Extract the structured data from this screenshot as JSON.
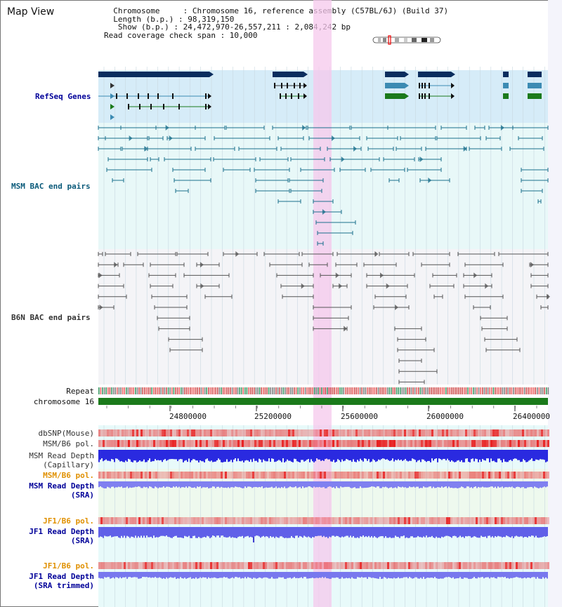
{
  "page": {
    "title": "Map View"
  },
  "info": {
    "lines": [
      "  Chromosome     : Chromosome 16, reference assembly (C57BL/6J) (Build 37)",
      "  Length (b.p.) : 98,319,150",
      "   Show (b.p.) : 24,472,970-26,557,211 : 2,084,242 bp",
      "Read coverage check span : 10,000"
    ]
  },
  "tracks": {
    "refseq": "RefSeq Genes",
    "msm_bac": "MSM BAC end pairs",
    "b6n_bac": "B6N BAC end pairs",
    "repeat": "Repeat",
    "chromosome": "chromosome 16",
    "dbsnp": "dbSNP(Mouse)",
    "msm_b6_pol": "MSM/B6 pol.",
    "msm_depth_cap_1": "MSM Read Depth",
    "msm_depth_cap_2": "(Capillary)",
    "msm_b6_pol_2": "MSM/B6 pol.",
    "msm_depth_sra_1": "MSM Read Depth",
    "msm_depth_sra_2": "(SRA)",
    "jf1_pol_1": "JF1/B6 pol.",
    "jf1_depth_sra_1": "JF1 Read Depth",
    "jf1_depth_sra_2": "(SRA)",
    "jf1_pol_2": "JF1/B6 pol.",
    "jf1_depth_trim_1": "JF1 Read Depth",
    "jf1_depth_trim_2": "(SRA trimmed)"
  },
  "axis": {
    "ticks": [
      "24800000",
      "25200000",
      "25600000",
      "26000000",
      "26400000"
    ]
  },
  "colors": {
    "refseq_bg": "#d6ecf8",
    "msm_bg": "#e8f8f8",
    "b6n_bg": "#f4f4f7",
    "highlight": "#f5c8ec",
    "chrom_bar": "#1b7a1b",
    "navy": "#0a2d5e",
    "teal_gene": "#3c8bb3",
    "green_gene": "#1b7a1b",
    "msm_pair": "#1a6f8c",
    "b6n_pair": "#555555",
    "snp_red": "#e62020",
    "depth_blue": "#2a2ae0",
    "depth_light": "#8080f0"
  }
}
